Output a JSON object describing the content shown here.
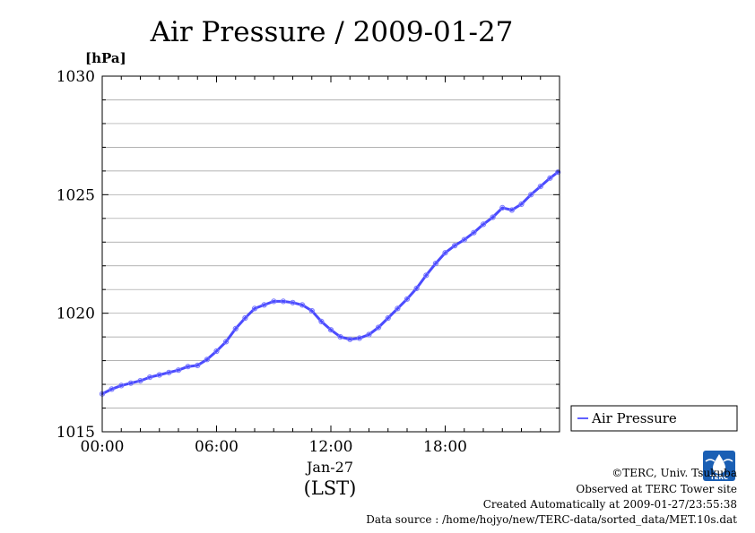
{
  "chart_data": {
    "type": "line",
    "title": "Air Pressure / 2009-01-27",
    "ylabel": "[hPa]",
    "xlabel": "(LST)",
    "x_date_label": "Jan-27",
    "ylim": [
      1015,
      1030
    ],
    "xlim": [
      "00:00",
      "24:00"
    ],
    "yticks": [
      "1015",
      "1020",
      "1025",
      "1030"
    ],
    "xticks": [
      "00:00",
      "06:00",
      "12:00",
      "18:00"
    ],
    "grid": true,
    "legend_position": "right",
    "series": [
      {
        "name": "Air Pressure",
        "color": "#2b2bff",
        "x": [
          "00:00",
          "00:30",
          "01:00",
          "01:30",
          "02:00",
          "02:30",
          "03:00",
          "03:30",
          "04:00",
          "04:30",
          "05:00",
          "05:30",
          "06:00",
          "06:30",
          "07:00",
          "07:30",
          "08:00",
          "08:30",
          "09:00",
          "09:30",
          "10:00",
          "10:30",
          "11:00",
          "11:30",
          "12:00",
          "12:30",
          "13:00",
          "13:30",
          "14:00",
          "14:30",
          "15:00",
          "15:30",
          "16:00",
          "16:30",
          "17:00",
          "17:30",
          "18:00",
          "18:30",
          "19:00",
          "19:30",
          "20:00",
          "20:30",
          "21:00",
          "21:30",
          "22:00",
          "22:30",
          "23:00",
          "23:30",
          "23:55"
        ],
        "values": [
          1016.6,
          1016.8,
          1016.95,
          1017.05,
          1017.15,
          1017.3,
          1017.4,
          1017.5,
          1017.6,
          1017.75,
          1017.8,
          1018.05,
          1018.4,
          1018.8,
          1019.35,
          1019.8,
          1020.2,
          1020.35,
          1020.5,
          1020.5,
          1020.45,
          1020.35,
          1020.1,
          1019.65,
          1019.3,
          1019.0,
          1018.9,
          1018.95,
          1019.1,
          1019.4,
          1019.8,
          1020.2,
          1020.6,
          1021.05,
          1021.6,
          1022.1,
          1022.55,
          1022.85,
          1023.1,
          1023.4,
          1023.75,
          1024.05,
          1024.45,
          1024.35,
          1024.6,
          1025.0,
          1025.35,
          1025.7,
          1025.95
        ]
      }
    ]
  },
  "legend": {
    "label": "Air Pressure"
  },
  "footer": {
    "copyright": "©TERC, Univ. Tsukuba",
    "observed": "Observed at TERC Tower site",
    "created": "Created Automatically at 2009-01-27/23:55:38",
    "source": "Data source : /home/hojyo/new/TERC-data/sorted_data/MET.10s.dat"
  },
  "logo": {
    "text": "TERC",
    "color": "#1a5fb4"
  }
}
